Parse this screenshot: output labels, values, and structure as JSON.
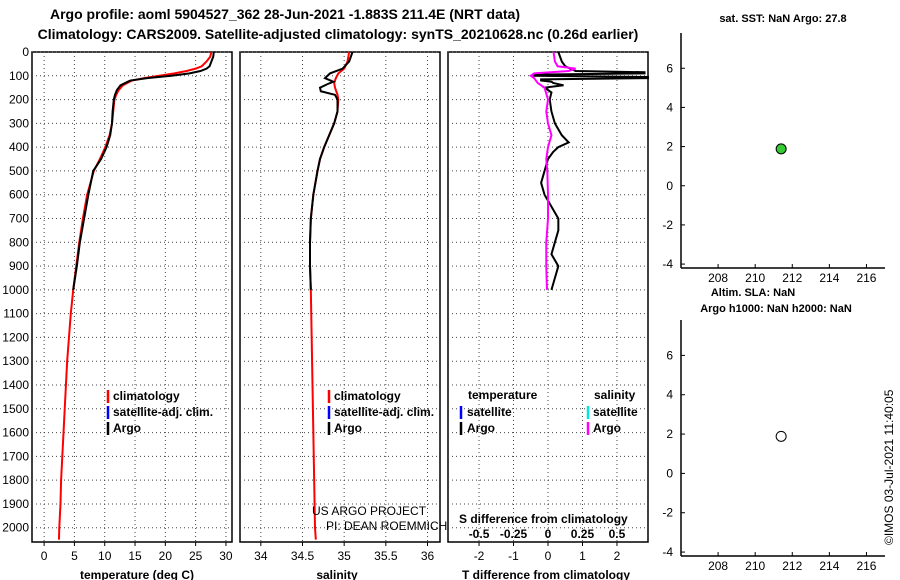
{
  "title_line1": "Argo profile: aoml 5904527_362 28-Jun-2021 -1.883S 211.4E (NRT data)",
  "title_line2": "Climatology: CARS2009. Satellite-adjusted climatology: synTS_20210628.nc (0.26d earlier)",
  "project_line1": "US ARGO PROJECT",
  "project_line2": "PI: DEAN ROEMMICH",
  "timestamp": "©IMOS 03-Jul-2021 11:40:05",
  "colors": {
    "climatology": "#ff0000",
    "satellite_clim": "#0000ff",
    "argo": "#000000",
    "sat_salinity": "#00e5e5",
    "argo_salinity": "#ff00ff",
    "marker_sst": "#33cc33"
  },
  "chart_data": [
    {
      "id": "temperature",
      "type": "line",
      "xlabel": "temperature (deg C)",
      "ylabel": "",
      "xlim": [
        -2,
        31
      ],
      "ylim": [
        2060,
        0
      ],
      "xticks": [
        0,
        5,
        10,
        15,
        20,
        25,
        30
      ],
      "yticks": [
        0,
        100,
        200,
        300,
        400,
        500,
        600,
        700,
        800,
        900,
        1000,
        1100,
        1200,
        1300,
        1400,
        1500,
        1600,
        1700,
        1800,
        1900,
        2000
      ],
      "grid": true,
      "legend": [
        "climatology",
        "satellite-adj. clim.",
        "Argo"
      ],
      "series": [
        {
          "name": "Argo",
          "color": "#000000",
          "depth": [
            0,
            20,
            40,
            60,
            70,
            80,
            90,
            100,
            110,
            120,
            140,
            160,
            180,
            200,
            250,
            300,
            350,
            400,
            450,
            500,
            600,
            700,
            800,
            900,
            1000
          ],
          "values": [
            28.0,
            27.9,
            27.6,
            27.3,
            26.8,
            25.8,
            24.0,
            21.0,
            17.0,
            14.2,
            12.6,
            12.0,
            11.7,
            11.5,
            11.3,
            11.2,
            10.9,
            10.3,
            9.4,
            8.1,
            7.3,
            6.6,
            5.9,
            5.4,
            4.8
          ]
        },
        {
          "name": "climatology",
          "color": "#ff0000",
          "depth": [
            0,
            20,
            40,
            60,
            70,
            80,
            90,
            100,
            110,
            120,
            140,
            160,
            180,
            200,
            250,
            300,
            350,
            400,
            450,
            500,
            600,
            700,
            800,
            900,
            1000,
            1100,
            1200,
            1300,
            1400,
            1500,
            1600,
            1700,
            1800,
            1900,
            2000,
            2050
          ],
          "values": [
            27.6,
            27.4,
            26.8,
            26.0,
            25.0,
            23.5,
            21.5,
            19.0,
            16.5,
            14.5,
            13.0,
            12.3,
            11.9,
            11.6,
            11.4,
            11.2,
            10.8,
            10.1,
            9.2,
            8.2,
            7.1,
            6.4,
            5.8,
            5.3,
            4.8,
            4.4,
            4.1,
            3.8,
            3.6,
            3.4,
            3.2,
            3.0,
            2.8,
            2.7,
            2.5,
            2.45
          ]
        }
      ]
    },
    {
      "id": "salinity",
      "type": "line",
      "xlabel": "salinity",
      "ylabel": "",
      "xlim": [
        33.75,
        36.15
      ],
      "ylim": [
        2060,
        0
      ],
      "xticks": [
        34,
        34.5,
        35,
        35.5,
        36
      ],
      "yticks": [
        0,
        100,
        200,
        300,
        400,
        500,
        600,
        700,
        800,
        900,
        1000,
        1100,
        1200,
        1300,
        1400,
        1500,
        1600,
        1700,
        1800,
        1900,
        2000
      ],
      "grid": true,
      "legend": [
        "climatology",
        "satellite-adj. clim.",
        "Argo"
      ],
      "series": [
        {
          "name": "Argo",
          "color": "#000000",
          "depth": [
            0,
            40,
            70,
            90,
            110,
            125,
            135,
            150,
            165,
            180,
            200,
            250,
            300,
            350,
            400,
            450,
            500,
            600,
            700,
            800,
            900,
            1000
          ],
          "values": [
            35.1,
            35.06,
            34.98,
            34.83,
            34.77,
            34.87,
            34.8,
            34.71,
            34.72,
            34.89,
            34.92,
            34.92,
            34.88,
            34.82,
            34.76,
            34.71,
            34.68,
            34.63,
            34.6,
            34.59,
            34.59,
            34.6
          ]
        },
        {
          "name": "climatology",
          "color": "#ff0000",
          "depth": [
            0,
            40,
            70,
            90,
            110,
            130,
            150,
            180,
            200,
            250,
            300,
            350,
            400,
            450,
            500,
            600,
            700,
            800,
            900,
            1000,
            1200,
            1400,
            1600,
            1800,
            2000,
            2050
          ],
          "values": [
            35.06,
            35.04,
            35.0,
            34.93,
            34.9,
            34.88,
            34.89,
            34.92,
            34.93,
            34.92,
            34.88,
            34.82,
            34.76,
            34.71,
            34.68,
            34.63,
            34.6,
            34.59,
            34.59,
            34.6,
            34.61,
            34.62,
            34.63,
            34.64,
            34.65,
            34.66
          ]
        }
      ]
    },
    {
      "id": "difference",
      "type": "line",
      "xlabel": "T difference from climatology",
      "xlabel2": "S difference from climatology",
      "xlim": [
        -2.9,
        2.9
      ],
      "ylim": [
        2060,
        0
      ],
      "xticks": [
        -2,
        -1,
        0,
        1,
        2
      ],
      "xticks2": [
        "-0.5",
        "-0.25",
        "0",
        "0.25",
        "0.5"
      ],
      "grid": true,
      "legend_headers": [
        "temperature",
        "salinity"
      ],
      "legend": [
        "satellite",
        "Argo",
        "satellite",
        "Argo"
      ],
      "series": [
        {
          "name": "T Argo",
          "color": "#000000",
          "depth": [
            0,
            40,
            60,
            80,
            85,
            90,
            95,
            100,
            105,
            110,
            115,
            120,
            125,
            130,
            140,
            150,
            170,
            200,
            250,
            300,
            350,
            380,
            400,
            420,
            450,
            500,
            550,
            600,
            650,
            700,
            750,
            800,
            850,
            900,
            950,
            1000
          ],
          "values": [
            0.3,
            0.4,
            0.5,
            0.8,
            2.8,
            2.8,
            -0.4,
            -0.4,
            2.9,
            2.9,
            -0.2,
            -0.2,
            0.1,
            0.15,
            0.45,
            -0.1,
            0.1,
            0.05,
            0.1,
            0.2,
            0.4,
            0.6,
            0.3,
            0.15,
            0.0,
            -0.1,
            -0.2,
            -0.1,
            0.1,
            0.3,
            0.3,
            0.2,
            0.1,
            0.3,
            0.2,
            0.1
          ]
        },
        {
          "name": "S Argo",
          "color": "#ff00ff",
          "depth": [
            0,
            40,
            60,
            70,
            80,
            90,
            100,
            110,
            130,
            150,
            200,
            250,
            300,
            350,
            400,
            450,
            500,
            600,
            700,
            800,
            900,
            1000
          ],
          "values": [
            0.16,
            0.2,
            0.28,
            0.8,
            0.6,
            -0.4,
            -0.5,
            -0.4,
            -0.3,
            -0.1,
            0.0,
            -0.05,
            0.0,
            0.1,
            0.0,
            -0.05,
            -0.02,
            0.0,
            0.0,
            -0.05,
            -0.05,
            -0.03
          ]
        }
      ]
    },
    {
      "id": "sst",
      "type": "scatter",
      "title": "sat. SST: NaN Argo: 27.8",
      "xlabel": "",
      "xlim": [
        206,
        217
      ],
      "ylim": [
        -4.2,
        7.8
      ],
      "xticks": [
        208,
        210,
        212,
        214,
        216
      ],
      "yticks": [
        -4,
        -2,
        0,
        2,
        4,
        6
      ],
      "points": [
        {
          "x": 211.4,
          "y": 1.883
        }
      ]
    },
    {
      "id": "sla",
      "type": "scatter",
      "title": "Altim. SLA: NaN",
      "title2": "Argo h1000: NaN h2000: NaN",
      "xlabel": "",
      "xlim": [
        206,
        217
      ],
      "ylim": [
        -4.2,
        7.8
      ],
      "xticks": [
        208,
        210,
        212,
        214,
        216
      ],
      "yticks": [
        -4,
        -2,
        0,
        2,
        4,
        6
      ],
      "points": [
        {
          "x": 211.4,
          "y": 1.883
        }
      ]
    }
  ]
}
